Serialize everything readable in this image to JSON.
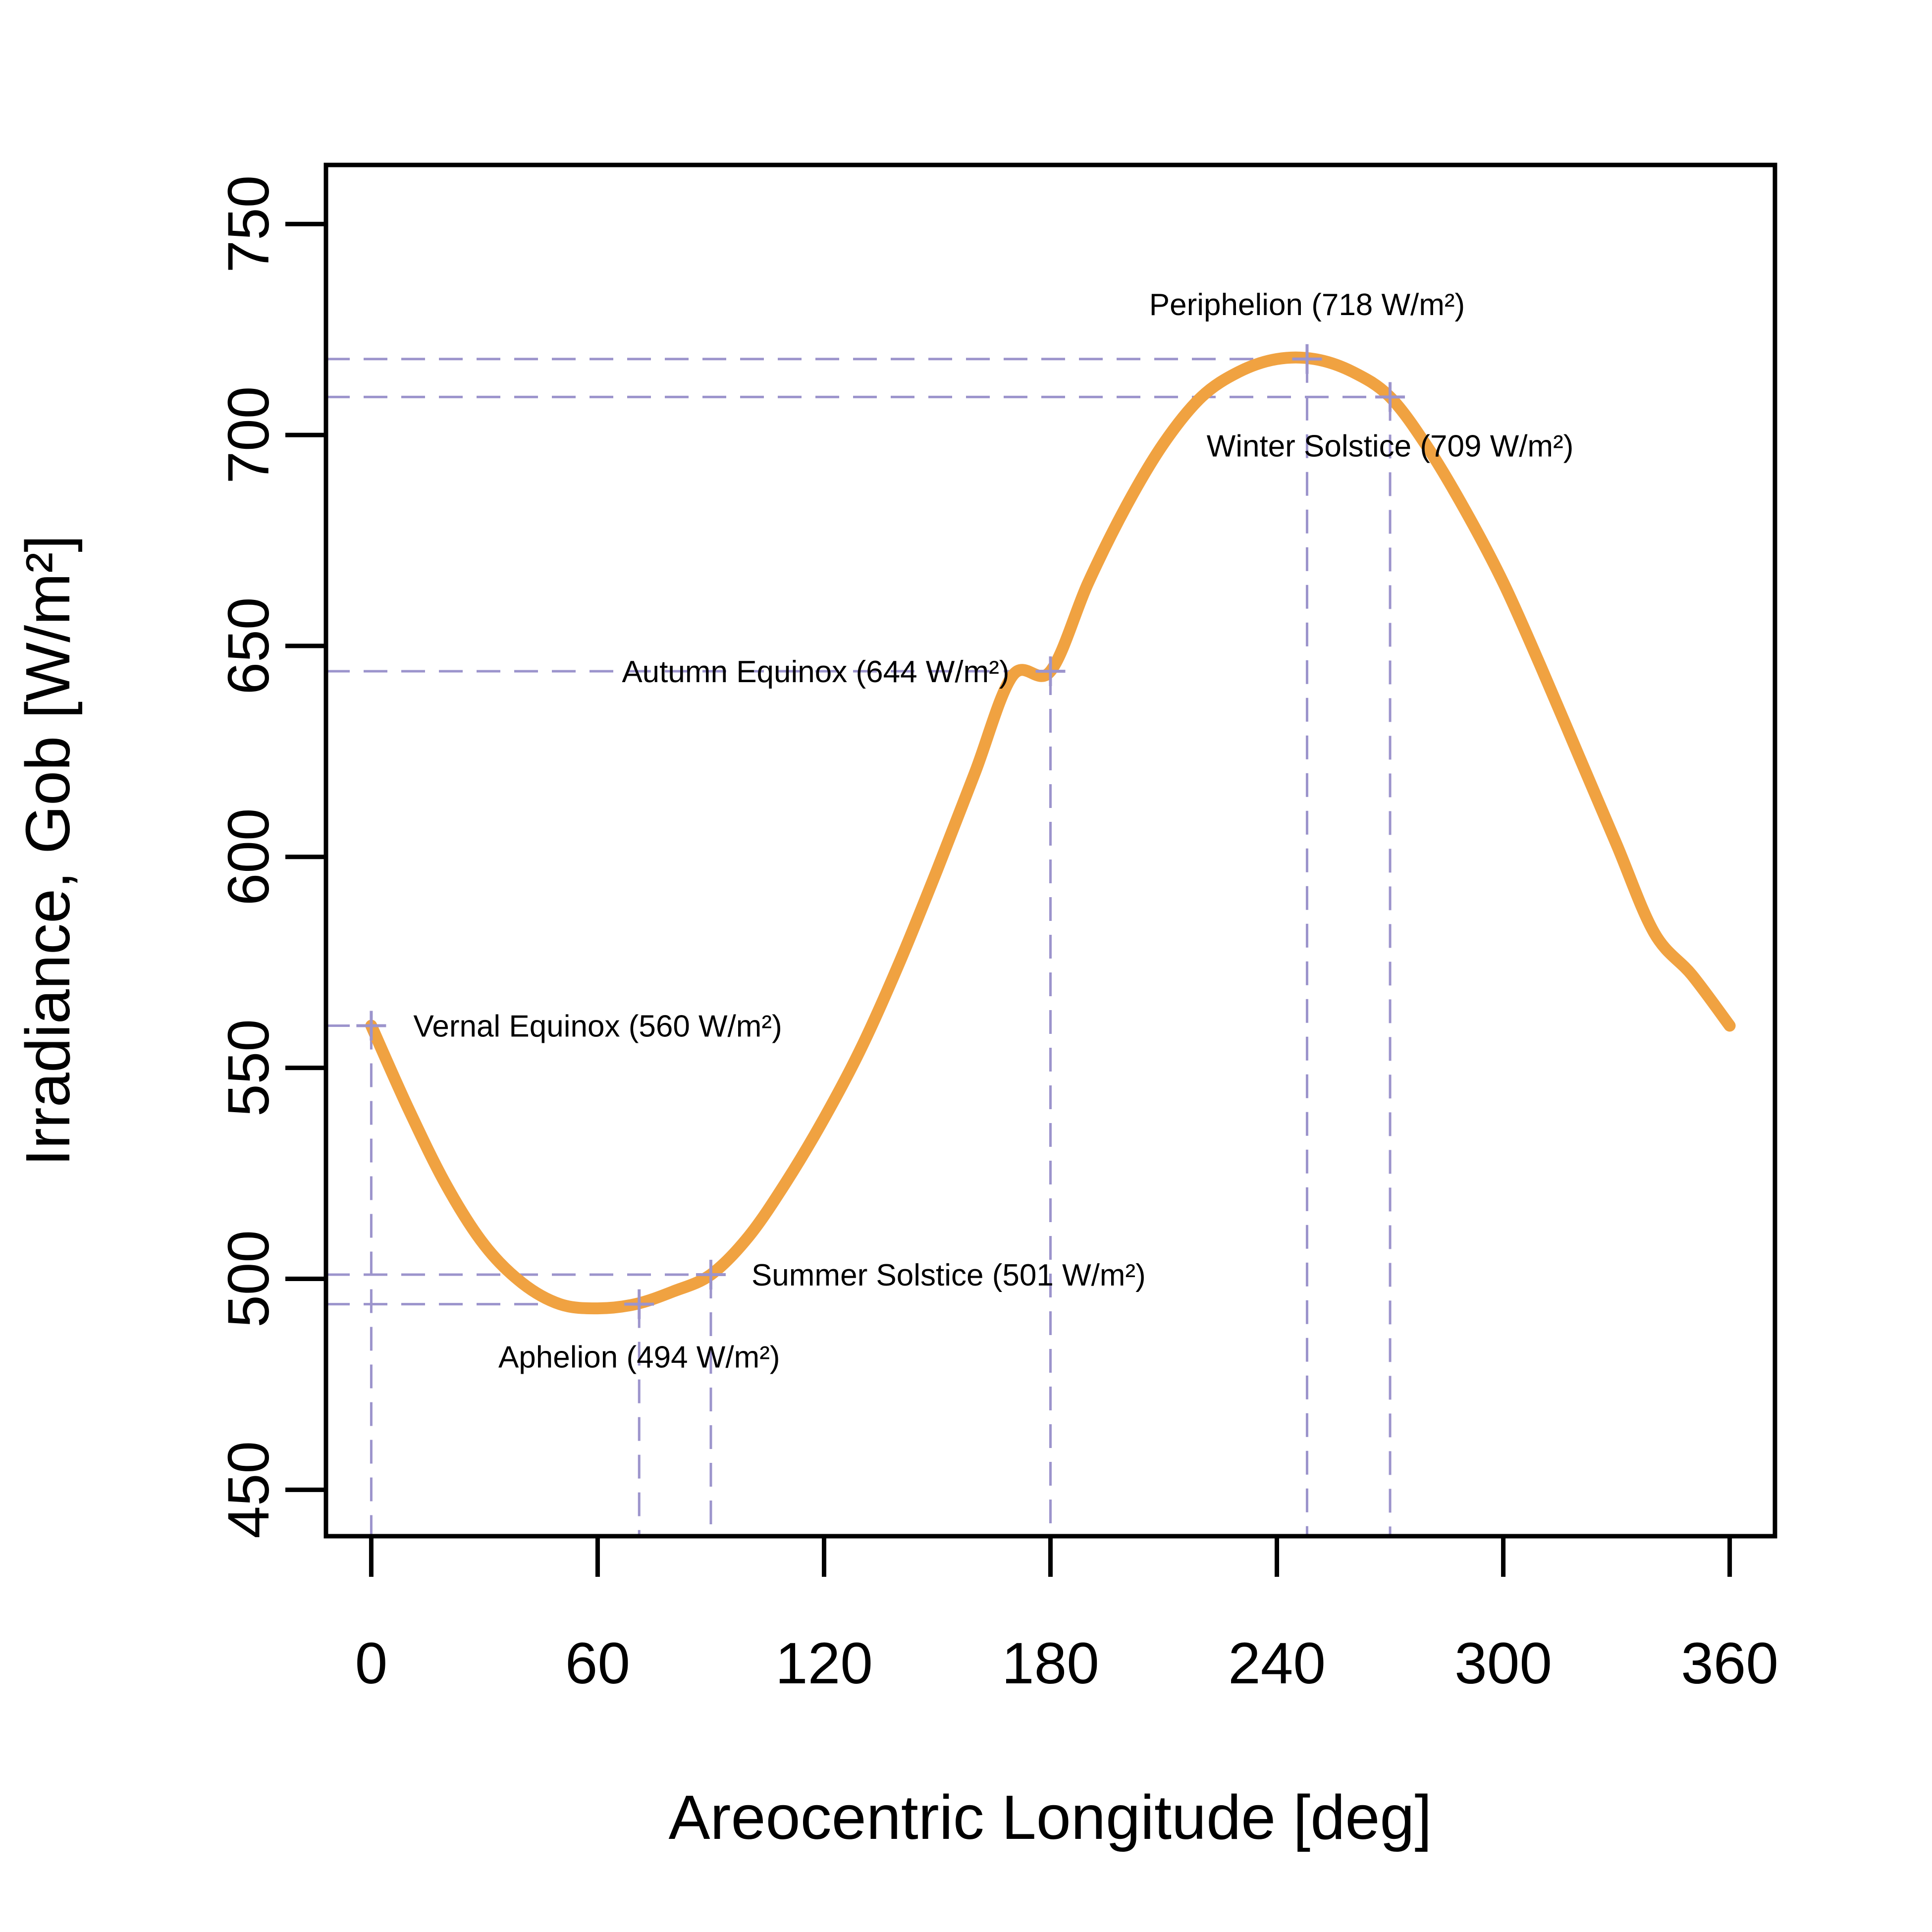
{
  "chart_data": {
    "type": "line",
    "title": "",
    "xlabel": "Areocentric Longitude [deg]",
    "ylabel": "Irradiance, Gob [W/m²]",
    "xlim": [
      -12,
      372
    ],
    "ylim": [
      439,
      764
    ],
    "x_ticks": [
      0,
      60,
      120,
      180,
      240,
      300,
      360
    ],
    "x_tick_labels": [
      "0",
      "60",
      "120",
      "180",
      "240",
      "300",
      "360"
    ],
    "y_ticks": [
      450,
      500,
      550,
      600,
      650,
      700,
      750
    ],
    "y_tick_labels": [
      "450",
      "500",
      "550",
      "600",
      "650",
      "700",
      "750"
    ],
    "grid": false,
    "legend": "none",
    "colors": {
      "curve": "#F0A241",
      "markers": "#9C94CC",
      "axes": "#000000"
    },
    "series": [
      {
        "x": [
          0,
          10,
          20,
          30,
          40,
          50,
          60,
          70,
          80,
          90,
          100,
          110,
          120,
          130,
          140,
          150,
          160,
          170,
          180,
          190,
          200,
          210,
          220,
          230,
          240,
          250,
          260,
          270,
          280,
          290,
          300,
          310,
          320,
          330,
          340,
          350,
          360
        ],
        "values": [
          560,
          540,
          522,
          508,
          499,
          494,
          493,
          494,
          497,
          501,
          510,
          523,
          538,
          555,
          575,
          597,
          620,
          643,
          644,
          665,
          683,
          698,
          709,
          715,
          718,
          718,
          715,
          709,
          697,
          682,
          665,
          645,
          624,
          603,
          582,
          572,
          560
        ]
      }
    ],
    "annotations": [
      {
        "label": "Vernal Equinox (560 W/m²)",
        "x": 0,
        "y": 560
      },
      {
        "label": "Aphelion (494 W/m²)",
        "x": 71,
        "y": 494
      },
      {
        "label": "Summer Solstice (501 W/m²)",
        "x": 90,
        "y": 501
      },
      {
        "label": "Autumn Equinox (644 W/m²)",
        "x": 180,
        "y": 644
      },
      {
        "label": "Periphelion (718 W/m²)",
        "x": 248,
        "y": 718
      },
      {
        "label": "Winter Solstice (709 W/m²)",
        "x": 270,
        "y": 709
      }
    ]
  }
}
